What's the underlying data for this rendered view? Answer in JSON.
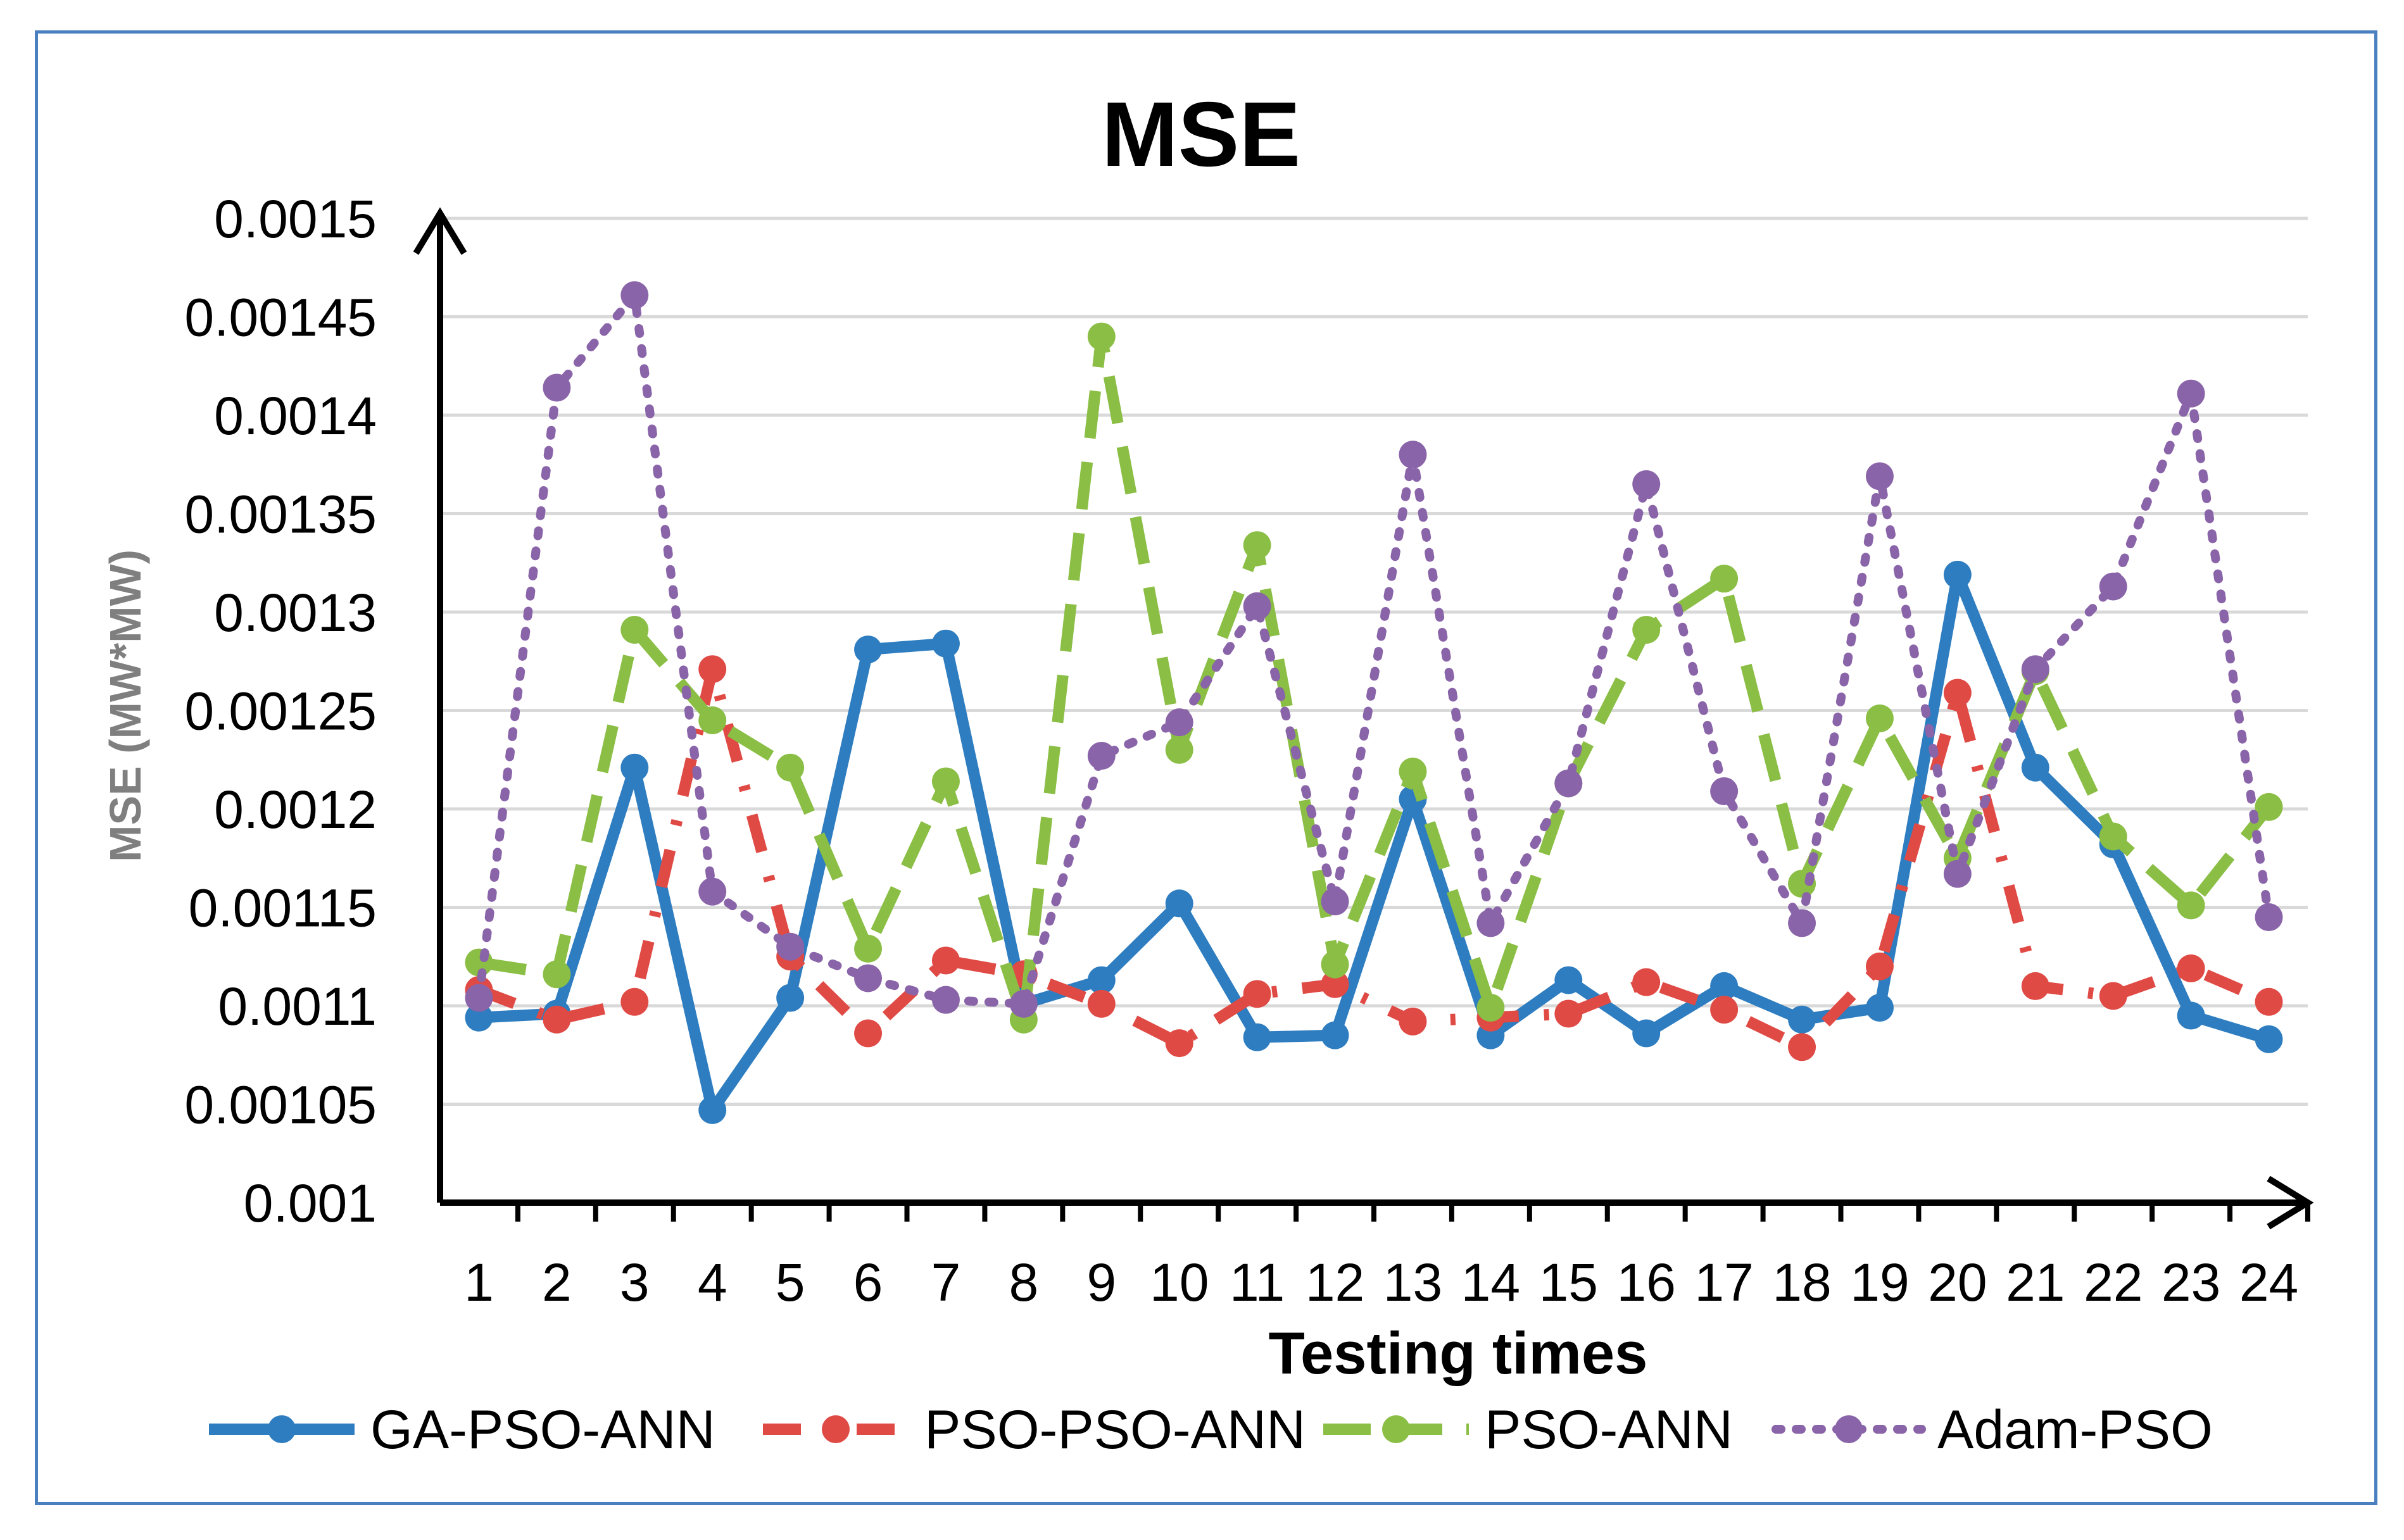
{
  "chart_data": {
    "type": "line",
    "title": "MSE",
    "xlabel": "Testing times",
    "ylabel": "MSE (MW*MW)",
    "categories": [
      "1",
      "2",
      "3",
      "4",
      "5",
      "6",
      "7",
      "8",
      "9",
      "10",
      "11",
      "12",
      "13",
      "14",
      "15",
      "16",
      "17",
      "18",
      "19",
      "20",
      "21",
      "22",
      "23",
      "24"
    ],
    "yticks": [
      "0.001",
      "0.00105",
      "0.0011",
      "0.00115",
      "0.0012",
      "0.00125",
      "0.0013",
      "0.00135",
      "0.0014",
      "0.00145",
      "0.0015"
    ],
    "ylim": [
      0.001,
      0.0015
    ],
    "grid": true,
    "legend_position": "bottom",
    "series": [
      {
        "name": "GA-PSO-ANN",
        "color": "#2e7dc0",
        "dash": "solid",
        "marker": "circle",
        "values": [
          0.001094,
          0.001096,
          0.001221,
          0.001047,
          0.001104,
          0.001281,
          0.001284,
          0.001101,
          0.001113,
          0.001152,
          0.001084,
          0.001085,
          0.001205,
          0.001085,
          0.001113,
          0.001086,
          0.00111,
          0.001093,
          0.001099,
          0.001319,
          0.001221,
          0.001182,
          0.001095,
          0.001083
        ]
      },
      {
        "name": "PSO-PSO-ANN",
        "color": "#e04a45",
        "dash": "dashdot",
        "marker": "circle",
        "values": [
          0.001108,
          0.001093,
          0.001102,
          0.001271,
          0.001125,
          0.001086,
          0.001123,
          0.001116,
          0.001101,
          0.001081,
          0.001106,
          0.001111,
          0.001092,
          0.001094,
          0.001096,
          0.001112,
          0.001098,
          0.001079,
          0.00112,
          0.001259,
          0.00111,
          0.001105,
          0.001119,
          0.001102
        ]
      },
      {
        "name": "PSO-ANN",
        "color": "#8bbe45",
        "dash": "longdash",
        "marker": "circle",
        "values": [
          0.001122,
          0.001116,
          0.001291,
          0.001245,
          0.001221,
          0.001129,
          0.001214,
          0.001093,
          0.00144,
          0.00123,
          0.001334,
          0.001121,
          0.001219,
          0.001099,
          0.001213,
          0.001291,
          0.001317,
          0.001162,
          0.001246,
          0.001175,
          0.00127,
          0.001186,
          0.001151,
          0.001201
        ]
      },
      {
        "name": "Adam-PSO",
        "color": "#8a64a8",
        "dash": "dot",
        "marker": "circle",
        "values": [
          0.001104,
          0.001414,
          0.001461,
          0.001158,
          0.00113,
          0.001114,
          0.001103,
          0.001101,
          0.001227,
          0.001244,
          0.001303,
          0.001153,
          0.00138,
          0.001142,
          0.001213,
          0.001365,
          0.001209,
          0.001142,
          0.001369,
          0.001167,
          0.001271,
          0.001313,
          0.001411,
          0.001145
        ]
      }
    ]
  }
}
